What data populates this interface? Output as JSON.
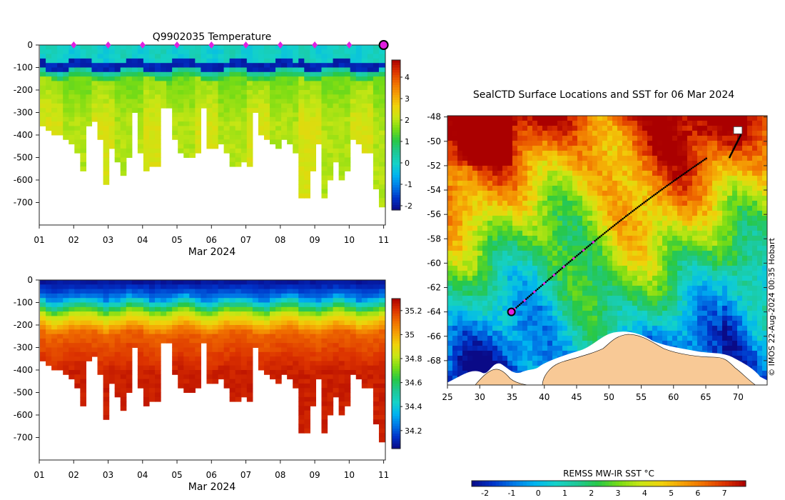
{
  "colors": {
    "land": "#f8c996",
    "marker": "#e020e0",
    "end_marker": "#c018c0",
    "track": "#000000"
  },
  "colormap": [
    "#0a0a87",
    "#0032c8",
    "#0078e6",
    "#00b4f0",
    "#14d2c8",
    "#1ec896",
    "#28c846",
    "#78dc14",
    "#c8e614",
    "#f0d20a",
    "#f5a005",
    "#f06e00",
    "#dc3200",
    "#aa0000"
  ],
  "chart_data": [
    {
      "id": "temp-section",
      "type": "heatmap",
      "title": "Q9902035  Temperature",
      "xlabel": "Mar 2024",
      "ylabel": "",
      "x_ticks": [
        "01",
        "02",
        "03",
        "04",
        "05",
        "06",
        "07",
        "08",
        "09",
        "10",
        "11"
      ],
      "y_ticks": [
        0,
        -100,
        -200,
        -300,
        -400,
        -500,
        -600,
        -700
      ],
      "xlim": [
        1,
        11.05
      ],
      "ylim": [
        -800,
        0
      ],
      "colorbar": {
        "ticks": [
          4,
          3,
          2,
          1,
          0,
          -1,
          -2
        ],
        "range": [
          -2.2,
          4.8
        ]
      },
      "profile_markers_day": [
        2,
        3,
        4,
        5,
        6,
        7,
        8,
        9,
        10
      ],
      "last_profile_day": 11,
      "profile_depths_m": [
        350,
        380,
        390,
        400,
        410,
        430,
        470,
        550,
        350,
        330,
        420,
        620,
        460,
        520,
        570,
        500,
        300,
        480,
        560,
        530,
        530,
        280,
        270,
        420,
        470,
        490,
        490,
        470,
        270,
        450,
        460,
        430,
        480,
        540,
        540,
        520,
        530,
        300,
        400,
        420,
        430,
        460,
        420,
        430,
        480,
        670,
        670,
        560,
        440,
        680,
        600,
        520,
        590,
        560,
        420,
        440,
        470,
        480,
        630,
        710
      ]
    },
    {
      "id": "salinity-section",
      "type": "heatmap",
      "title": "",
      "xlabel": "Mar 2024",
      "ylabel": "",
      "x_ticks": [
        "01",
        "02",
        "03",
        "04",
        "05",
        "06",
        "07",
        "08",
        "09",
        "10",
        "11"
      ],
      "y_ticks": [
        0,
        -100,
        -200,
        -300,
        -400,
        -500,
        -600,
        -700
      ],
      "xlim": [
        1,
        11.05
      ],
      "ylim": [
        -800,
        0
      ],
      "colorbar": {
        "ticks": [
          35.2,
          35,
          34.8,
          34.6,
          34.4,
          34.2
        ],
        "range": [
          34.05,
          35.3
        ]
      }
    },
    {
      "id": "sst-map",
      "type": "heatmap",
      "title": "SealCTD Surface Locations and SST for 06 Mar 2024",
      "x_ticks": [
        25,
        30,
        35,
        40,
        45,
        50,
        55,
        60,
        65,
        70
      ],
      "y_ticks": [
        -48,
        -50,
        -52,
        -54,
        -56,
        -58,
        -60,
        -62,
        -64,
        -66,
        -68
      ],
      "xlim": [
        25,
        74.5
      ],
      "ylim": [
        -70,
        -47.9
      ],
      "colorbar": {
        "label": "REMSS MW-IR SST °C",
        "ticks": [
          -2,
          -1,
          0,
          1,
          2,
          3,
          4,
          5,
          6,
          7
        ],
        "range": [
          -2.5,
          7.8
        ]
      },
      "track": {
        "start": [
          70.4,
          -49.5
        ],
        "end": [
          34.9,
          -64.0
        ]
      },
      "credit": "© IMOS 22-Aug-2024 00:35 Hobart"
    }
  ]
}
